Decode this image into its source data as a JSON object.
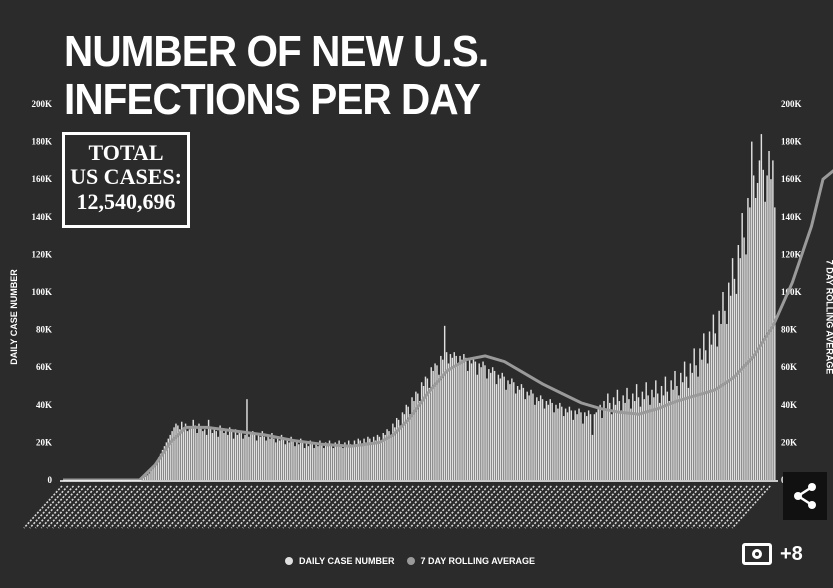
{
  "header": {
    "title_line1": "NUMBER OF NEW U.S.",
    "title_line2": "INFECTIONS PER DAY"
  },
  "total_box": {
    "line1": "TOTAL",
    "line2": "US CASES:",
    "value": "12,540,696"
  },
  "legend": {
    "daily_label": "DAILY CASE NUMBER",
    "avg_label": "7 DAY ROLLING AVERAGE"
  },
  "gallery": {
    "count_label": "+8"
  },
  "colors": {
    "background": "#2b2b2b",
    "bars": "#e0e0e0",
    "average_line": "#9a9a9a",
    "text": "#ffffff"
  },
  "chart_data": {
    "type": "bar",
    "ylabel": "DAILY CASE NUMBER",
    "ylabel_right": "7 DAY ROLLING AVERAGE",
    "ylim": [
      0,
      200000
    ],
    "y_ticks": [
      "0",
      "20K",
      "40K",
      "60K",
      "80K",
      "100K",
      "120K",
      "140K",
      "160K",
      "180K",
      "200K"
    ],
    "grid": false,
    "legend_position": "bottom-center",
    "series": [
      {
        "name": "DAILY CASE NUMBER",
        "type": "bar",
        "values": [
          0,
          0,
          0,
          0,
          0,
          0,
          0,
          0,
          0,
          0,
          0,
          0,
          0,
          0,
          0,
          0,
          0,
          0,
          0,
          0,
          0,
          0,
          0,
          0,
          0,
          0,
          0,
          0,
          0,
          0,
          0,
          0,
          0,
          0,
          0,
          0,
          0,
          0,
          0,
          0,
          500,
          800,
          1200,
          1800,
          2500,
          3500,
          5000,
          6500,
          8000,
          10000,
          12000,
          14000,
          16000,
          18000,
          20000,
          22000,
          24000,
          26000,
          28000,
          30000,
          29000,
          27000,
          31000,
          28000,
          30000,
          26000,
          27000,
          28000,
          32000,
          29000,
          25000,
          30000,
          28000,
          26000,
          27000,
          24000,
          32000,
          28000,
          25000,
          27000,
          26000,
          23000,
          29000,
          27000,
          25000,
          27000,
          24000,
          28000,
          26000,
          22000,
          27000,
          24000,
          26000,
          25000,
          22000,
          24000,
          43000,
          23000,
          25000,
          26000,
          24000,
          21000,
          25000,
          23000,
          26000,
          23000,
          21000,
          24000,
          22000,
          25000,
          22000,
          20000,
          23000,
          21000,
          24000,
          22000,
          19000,
          22000,
          20000,
          23000,
          21000,
          18000,
          21000,
          19000,
          22000,
          20000,
          17000,
          20000,
          18000,
          21000,
          19000,
          17000,
          20000,
          18000,
          21000,
          19000,
          17000,
          20000,
          18000,
          21000,
          19000,
          17000,
          20000,
          18000,
          21000,
          19000,
          17000,
          20000,
          18000,
          21000,
          19000,
          18000,
          21000,
          19000,
          22000,
          21000,
          18000,
          22000,
          20000,
          23000,
          22000,
          19000,
          23000,
          21000,
          24000,
          23000,
          20000,
          25000,
          24000,
          27000,
          26000,
          23000,
          30000,
          28000,
          33000,
          32000,
          29000,
          36000,
          35000,
          40000,
          39000,
          35000,
          44000,
          42000,
          47000,
          46000,
          42000,
          52000,
          50000,
          55000,
          54000,
          49000,
          60000,
          58000,
          62000,
          61000,
          56000,
          66000,
          64000,
          82000,
          68000,
          62000,
          67000,
          65000,
          68000,
          66000,
          61000,
          66000,
          64000,
          67000,
          65000,
          58000,
          64000,
          62000,
          65000,
          63000,
          56000,
          62000,
          60000,
          63000,
          61000,
          54000,
          59000,
          57000,
          60000,
          58000,
          51000,
          56000,
          54000,
          57000,
          55000,
          48000,
          53000,
          51000,
          54000,
          52000,
          46000,
          50000,
          48000,
          51000,
          49000,
          43000,
          47000,
          45000,
          48000,
          46000,
          40000,
          44000,
          42000,
          45000,
          43000,
          38000,
          42000,
          40000,
          43000,
          41000,
          36000,
          40000,
          38000,
          41000,
          39000,
          34000,
          38000,
          36000,
          39000,
          37000,
          32000,
          37000,
          35000,
          38000,
          36000,
          30000,
          36000,
          34000,
          37000,
          35000,
          24000,
          35000,
          36000,
          38000,
          40000,
          33000,
          42000,
          38000,
          46000,
          41000,
          35000,
          44000,
          40000,
          48000,
          42000,
          37000,
          45000,
          41000,
          49000,
          43000,
          38000,
          46000,
          42000,
          51000,
          44000,
          39000,
          47000,
          43000,
          52000,
          45000,
          40000,
          48000,
          44000,
          53000,
          46000,
          41000,
          50000,
          45000,
          55000,
          47000,
          42000,
          53000,
          48000,
          58000,
          50000,
          45000,
          57000,
          52000,
          63000,
          55000,
          49000,
          62000,
          57000,
          70000,
          61000,
          55000,
          70000,
          64000,
          78000,
          69000,
          62000,
          79000,
          72000,
          88000,
          78000,
          71000,
          90000,
          83000,
          100000,
          90000,
          83000,
          105000,
          98000,
          118000,
          107000,
          99000,
          125000,
          118000,
          142000,
          129000,
          120000,
          150000,
          145000,
          180000,
          162000,
          150000,
          158000,
          170000,
          184000,
          165000,
          148000,
          162000,
          175000,
          160000,
          170000,
          145000
        ]
      },
      {
        "name": "7 DAY ROLLING AVERAGE",
        "type": "line",
        "points": [
          [
            0,
            0
          ],
          [
            40,
            0
          ],
          [
            48,
            8000
          ],
          [
            56,
            20000
          ],
          [
            64,
            28000
          ],
          [
            75,
            28000
          ],
          [
            90,
            26000
          ],
          [
            105,
            24000
          ],
          [
            120,
            21000
          ],
          [
            135,
            19000
          ],
          [
            150,
            18000
          ],
          [
            165,
            20000
          ],
          [
            172,
            24000
          ],
          [
            180,
            32000
          ],
          [
            190,
            46000
          ],
          [
            200,
            58000
          ],
          [
            210,
            64000
          ],
          [
            220,
            66000
          ],
          [
            230,
            63000
          ],
          [
            240,
            57000
          ],
          [
            250,
            51000
          ],
          [
            260,
            46000
          ],
          [
            270,
            41000
          ],
          [
            280,
            38000
          ],
          [
            290,
            36000
          ],
          [
            300,
            35000
          ],
          [
            310,
            38000
          ],
          [
            320,
            42000
          ],
          [
            330,
            45000
          ],
          [
            340,
            48000
          ],
          [
            350,
            55000
          ],
          [
            360,
            66000
          ],
          [
            370,
            82000
          ],
          [
            380,
            105000
          ],
          [
            390,
            135000
          ],
          [
            396,
            160000
          ],
          [
            402,
            165000
          ]
        ]
      }
    ]
  }
}
